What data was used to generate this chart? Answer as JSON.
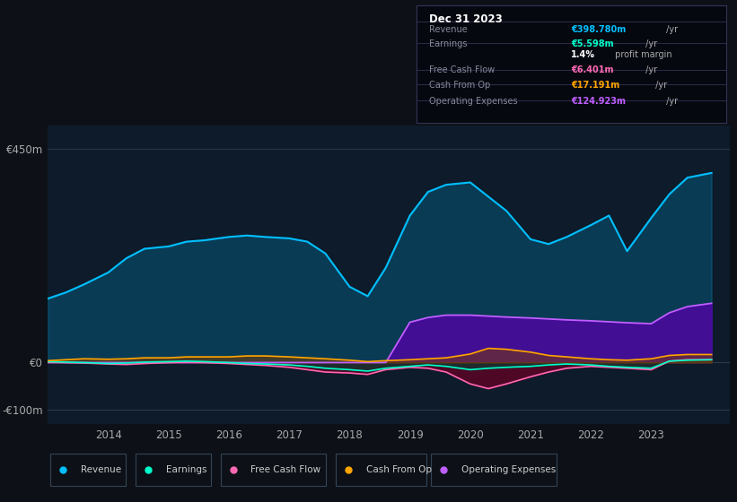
{
  "bg_color": "#0d1117",
  "plot_bg_color": "#0d1b2a",
  "title_box": {
    "date": "Dec 31 2023",
    "rows": [
      {
        "label": "Revenue",
        "value": "€398.780m",
        "unit": " /yr",
        "value_color": "#00bfff"
      },
      {
        "label": "Earnings",
        "value": "€5.598m",
        "unit": " /yr",
        "value_color": "#00ffcc"
      },
      {
        "label": "",
        "value": "1.4%",
        "unit": " profit margin",
        "value_color": "#ffffff"
      },
      {
        "label": "Free Cash Flow",
        "value": "€6.401m",
        "unit": " /yr",
        "value_color": "#ff69b4"
      },
      {
        "label": "Cash From Op",
        "value": "€17.191m",
        "unit": " /yr",
        "value_color": "#ffa500"
      },
      {
        "label": "Operating Expenses",
        "value": "€124.923m",
        "unit": " /yr",
        "value_color": "#bf5fff"
      }
    ]
  },
  "years": [
    2013.0,
    2013.3,
    2013.6,
    2014.0,
    2014.3,
    2014.6,
    2015.0,
    2015.3,
    2015.6,
    2016.0,
    2016.3,
    2016.6,
    2017.0,
    2017.3,
    2017.6,
    2018.0,
    2018.3,
    2018.6,
    2019.0,
    2019.3,
    2019.6,
    2020.0,
    2020.3,
    2020.6,
    2021.0,
    2021.3,
    2021.6,
    2022.0,
    2022.3,
    2022.6,
    2023.0,
    2023.3,
    2023.6,
    2024.0
  ],
  "revenue": [
    135,
    148,
    165,
    190,
    220,
    240,
    245,
    255,
    258,
    265,
    268,
    265,
    262,
    255,
    230,
    160,
    140,
    200,
    310,
    360,
    375,
    380,
    350,
    320,
    260,
    250,
    265,
    290,
    310,
    235,
    305,
    355,
    390,
    400
  ],
  "earnings": [
    2,
    1,
    0,
    -2,
    -1,
    1,
    2,
    3,
    2,
    0,
    -2,
    -3,
    -5,
    -8,
    -12,
    -15,
    -18,
    -12,
    -8,
    -5,
    -8,
    -15,
    -12,
    -10,
    -8,
    -5,
    -3,
    -5,
    -8,
    -10,
    -12,
    3,
    5,
    6
  ],
  "free_cash_flow": [
    1,
    0,
    -1,
    -3,
    -4,
    -2,
    0,
    1,
    0,
    -2,
    -4,
    -6,
    -10,
    -15,
    -20,
    -22,
    -25,
    -15,
    -10,
    -12,
    -20,
    -45,
    -55,
    -45,
    -30,
    -20,
    -12,
    -8,
    -10,
    -12,
    -15,
    3,
    6,
    6
  ],
  "cash_from_op": [
    4,
    6,
    8,
    7,
    8,
    10,
    10,
    12,
    12,
    12,
    14,
    14,
    12,
    10,
    8,
    5,
    2,
    4,
    6,
    8,
    10,
    18,
    30,
    28,
    22,
    15,
    12,
    8,
    6,
    5,
    8,
    15,
    17,
    17
  ],
  "op_expenses": [
    0,
    0,
    0,
    0,
    0,
    0,
    0,
    0,
    0,
    0,
    0,
    0,
    0,
    0,
    0,
    0,
    0,
    0,
    85,
    95,
    100,
    100,
    98,
    96,
    94,
    92,
    90,
    88,
    86,
    84,
    82,
    105,
    118,
    125
  ],
  "legend": [
    {
      "label": "Revenue",
      "color": "#00bfff"
    },
    {
      "label": "Earnings",
      "color": "#00ffcc"
    },
    {
      "label": "Free Cash Flow",
      "color": "#ff69b4"
    },
    {
      "label": "Cash From Op",
      "color": "#ffa500"
    },
    {
      "label": "Operating Expenses",
      "color": "#bf5fff"
    }
  ],
  "yticks": [
    -100,
    0,
    450
  ],
  "ytick_labels": [
    "-€100m",
    "€0",
    "€450m"
  ],
  "xtick_years": [
    2014,
    2015,
    2016,
    2017,
    2018,
    2019,
    2020,
    2021,
    2022,
    2023
  ],
  "ylim": [
    -130,
    500
  ],
  "xlim": [
    2013.0,
    2024.3
  ]
}
